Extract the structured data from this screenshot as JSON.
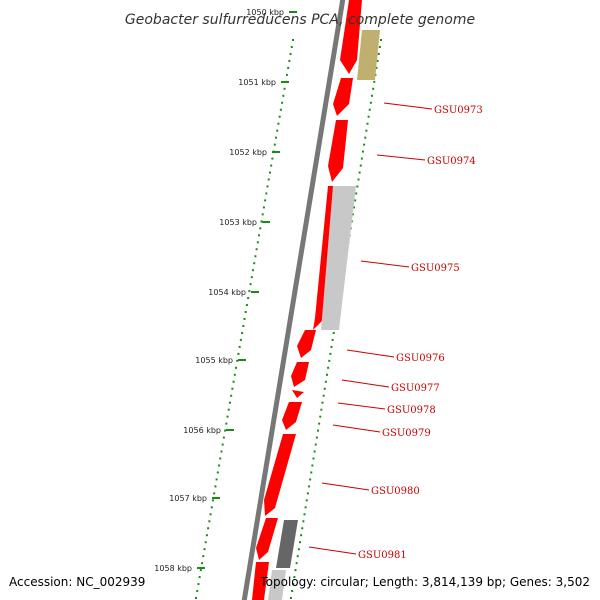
{
  "title": "Geobacter sulfurreducens PCA, complete genome",
  "accession": "Accession: NC_002939",
  "topology": "Topology: circular; Length: 3,814,139 bp; Genes: 3,502",
  "colors": {
    "backbone": "#777777",
    "gene_forward": "#ff0000",
    "gene_other": "#c8c8c8",
    "gene_dark": "#666666",
    "gene_olive": "#c0b070",
    "ticks": "#1a8a1a",
    "label": "#cc0000"
  },
  "ruler": {
    "ticks": [
      {
        "label": "1050 kbp"
      },
      {
        "label": "1051 kbp"
      },
      {
        "label": "1052 kbp"
      },
      {
        "label": "1053 kbp"
      },
      {
        "label": "1054 kbp"
      },
      {
        "label": "1055 kbp"
      },
      {
        "label": "1056 kbp"
      },
      {
        "label": "1057 kbp"
      },
      {
        "label": "1058 kbp"
      }
    ]
  },
  "gene_labels": [
    {
      "label": "GSU0973"
    },
    {
      "label": "GSU0974"
    },
    {
      "label": "GSU0975"
    },
    {
      "label": "GSU0976"
    },
    {
      "label": "GSU0977"
    },
    {
      "label": "GSU0978"
    },
    {
      "label": "GSU0979"
    },
    {
      "label": "GSU0980"
    },
    {
      "label": "GSU0981"
    }
  ]
}
